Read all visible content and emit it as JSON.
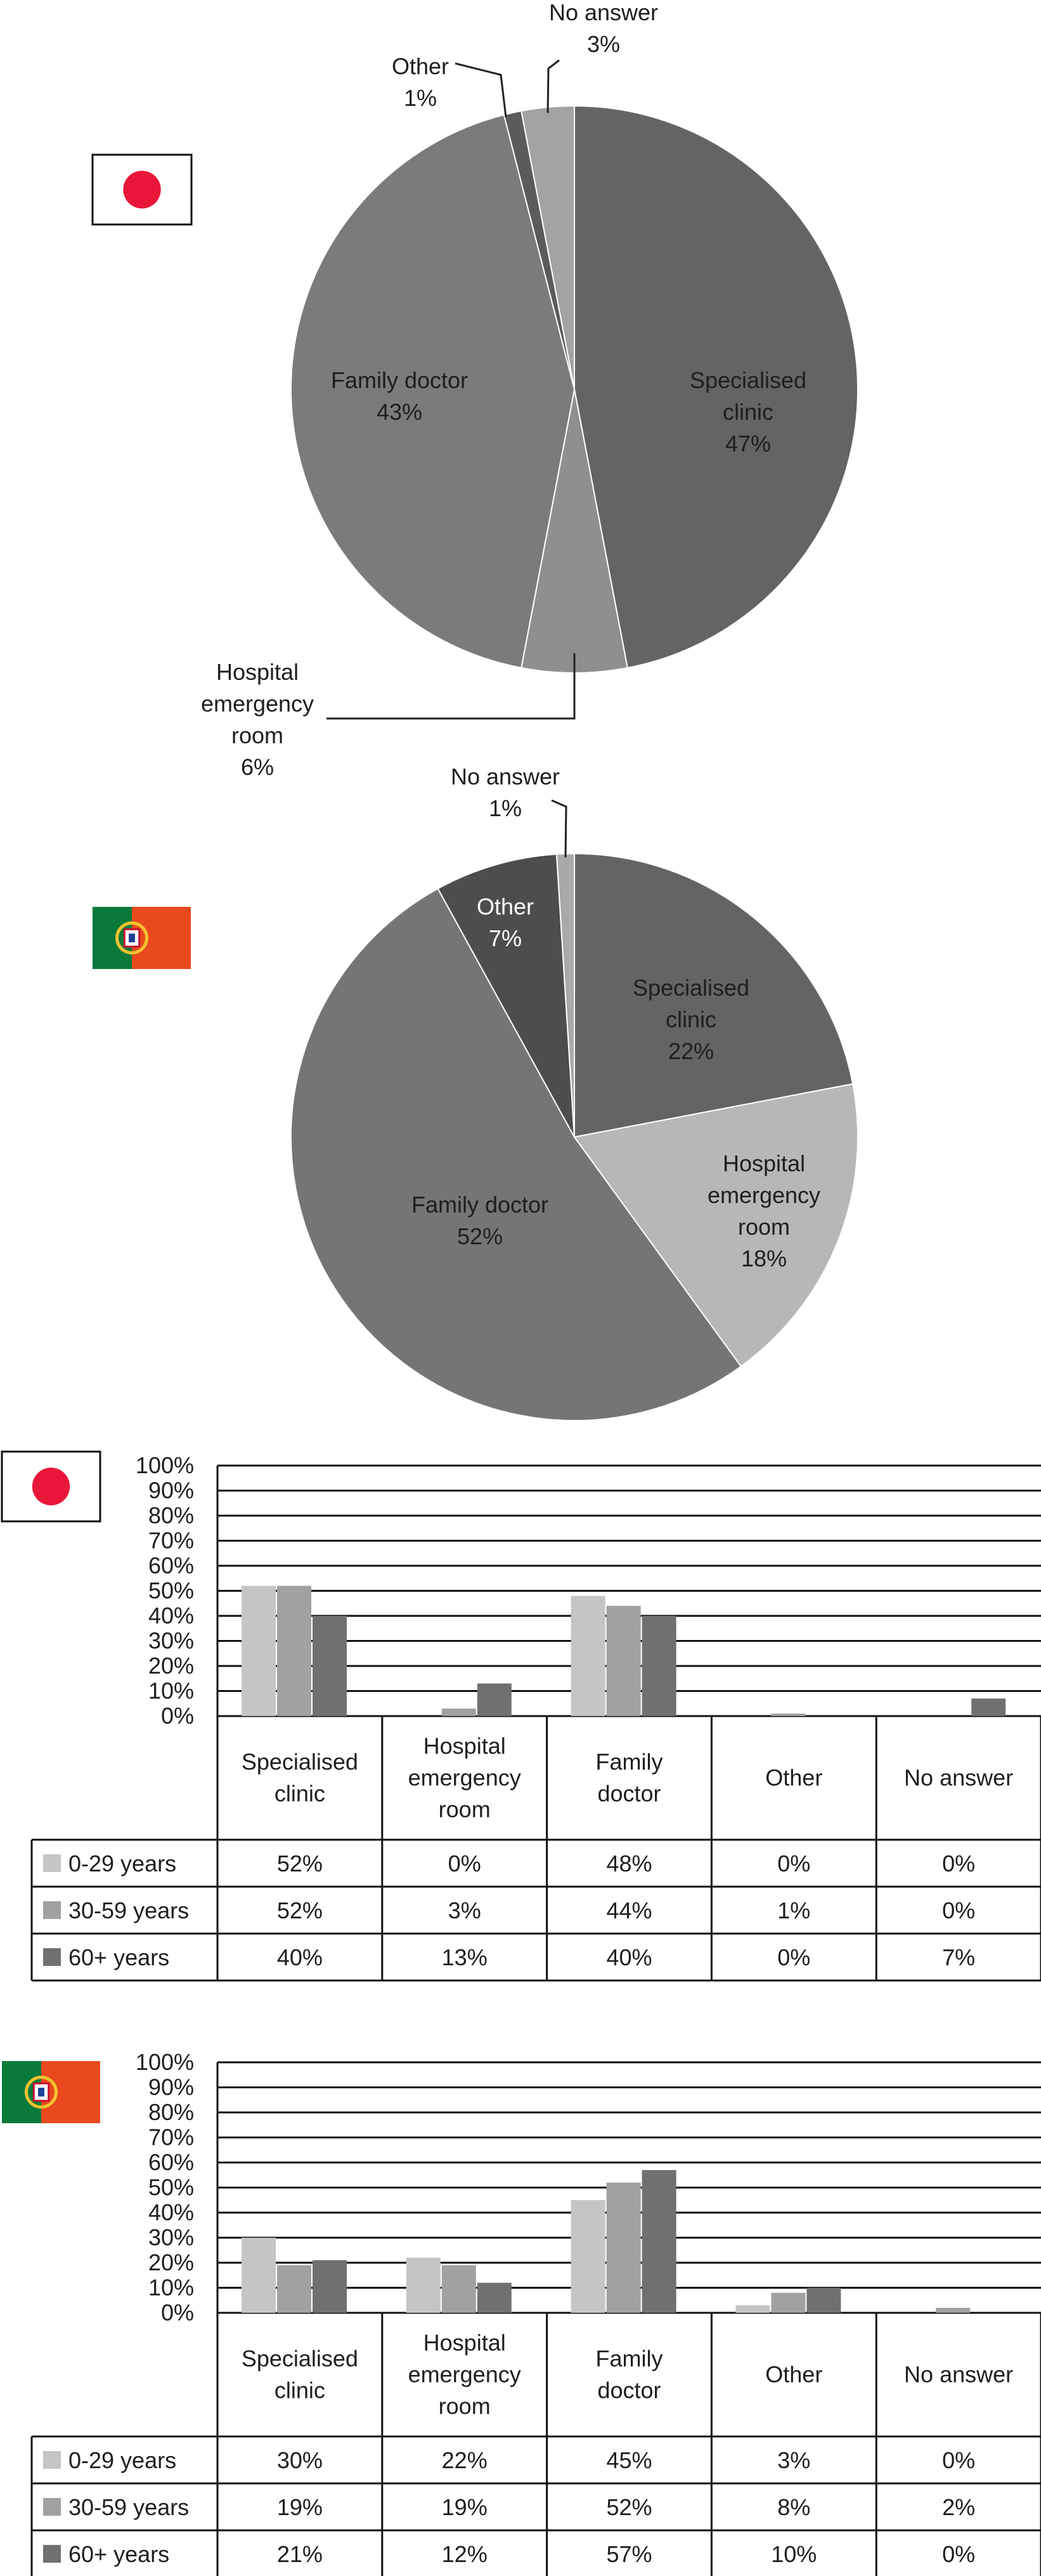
{
  "flags": {
    "japan": {
      "bg": "#ffffff",
      "disc": "#e8173a"
    },
    "portugal": {
      "green": "#0a7a3a",
      "red": "#e8491d",
      "emblem": "#f2c230"
    }
  },
  "pies": [
    {
      "flag": "japan",
      "slices": [
        {
          "label": [
            "Specialised",
            "clinic",
            "47%"
          ],
          "value": 47,
          "color": "#636565",
          "text_color": "dark"
        },
        {
          "label": [
            "Hospital",
            "emergency",
            "room",
            "6%"
          ],
          "value": 6,
          "color": "#8e8f90",
          "text_color": "dark",
          "callout": true
        },
        {
          "label": [
            "Family doctor",
            "43%"
          ],
          "value": 43,
          "color": "#7a7b7c",
          "text_color": "dark"
        },
        {
          "label": [
            "Other",
            "1%"
          ],
          "value": 1,
          "color": "#5a5b5c",
          "text_color": "dark",
          "callout": true
        },
        {
          "label": [
            "No answer",
            "3%"
          ],
          "value": 3,
          "color": "#a2a3a4",
          "text_color": "dark",
          "callout": true
        }
      ]
    },
    {
      "flag": "portugal",
      "slices": [
        {
          "label": [
            "Specialised",
            "clinic",
            "22%"
          ],
          "value": 22,
          "color": "#636565",
          "text_color": "dark"
        },
        {
          "label": [
            "Hospital",
            "emergency",
            "room",
            "18%"
          ],
          "value": 18,
          "color": "#b6b7b8",
          "text_color": "dark"
        },
        {
          "label": [
            "Family doctor",
            "52%"
          ],
          "value": 52,
          "color": "#747576",
          "text_color": "dark"
        },
        {
          "label": [
            "Other",
            "7%"
          ],
          "value": 7,
          "color": "#4b4d4f",
          "text_color": "light"
        },
        {
          "label": [
            "No answer",
            "1%"
          ],
          "value": 1,
          "color": "#a8a9aa",
          "text_color": "dark",
          "callout": true
        }
      ]
    }
  ],
  "chart_data": [
    {
      "type": "pie",
      "title": "",
      "categories": [
        "Specialised clinic",
        "Hospital emergency room",
        "Family doctor",
        "Other",
        "No answer"
      ],
      "values": [
        47,
        6,
        43,
        1,
        3
      ],
      "unit": "%"
    },
    {
      "type": "pie",
      "title": "",
      "categories": [
        "Specialised clinic",
        "Hospital emergency room",
        "Family doctor",
        "Other",
        "No answer"
      ],
      "values": [
        22,
        18,
        52,
        7,
        1
      ],
      "unit": "%"
    },
    {
      "type": "bar",
      "flag": "japan",
      "categories": [
        [
          "Specialised",
          "clinic"
        ],
        [
          "Hospital",
          "emergency",
          "room"
        ],
        [
          "Family",
          "doctor"
        ],
        [
          "Other"
        ],
        [
          "No answer"
        ]
      ],
      "series": [
        {
          "name": "0-29 years",
          "values": [
            52,
            0,
            48,
            0,
            0
          ],
          "display": [
            "52%",
            "0%",
            "48%",
            "0%",
            "0%"
          ],
          "color": "#c4c5c6"
        },
        {
          "name": "30-59 years",
          "values": [
            52,
            3,
            44,
            1,
            0
          ],
          "display": [
            "52%",
            "3%",
            "44%",
            "1%",
            "0%"
          ],
          "color": "#a0a1a2"
        },
        {
          "name": "60+ years",
          "values": [
            40,
            13,
            40,
            0,
            7
          ],
          "display": [
            "40%",
            "13%",
            "40%",
            "0%",
            "7%"
          ],
          "color": "#6f7071"
        }
      ],
      "yticks": [
        "0%",
        "10%",
        "20%",
        "30%",
        "40%",
        "50%",
        "60%",
        "70%",
        "80%",
        "90%",
        "100%"
      ],
      "ylim": [
        0,
        100
      ],
      "grid": true
    },
    {
      "type": "bar",
      "flag": "portugal",
      "categories": [
        [
          "Specialised",
          "clinic"
        ],
        [
          "Hospital",
          "emergency",
          "room"
        ],
        [
          "Family",
          "doctor"
        ],
        [
          "Other"
        ],
        [
          "No answer"
        ]
      ],
      "series": [
        {
          "name": "0-29 years",
          "values": [
            30,
            22,
            45,
            3,
            0
          ],
          "display": [
            "30%",
            "22%",
            "45%",
            "3%",
            "0%"
          ],
          "color": "#c4c5c6"
        },
        {
          "name": "30-59 years",
          "values": [
            19,
            19,
            52,
            8,
            2
          ],
          "display": [
            "19%",
            "19%",
            "52%",
            "8%",
            "2%"
          ],
          "color": "#a0a1a2"
        },
        {
          "name": "60+ years",
          "values": [
            21,
            12,
            57,
            10,
            0
          ],
          "display": [
            "21%",
            "12%",
            "57%",
            "10%",
            "0%"
          ],
          "color": "#6f7071"
        }
      ],
      "yticks": [
        "0%",
        "10%",
        "20%",
        "30%",
        "40%",
        "50%",
        "60%",
        "70%",
        "80%",
        "90%",
        "100%"
      ],
      "ylim": [
        0,
        100
      ],
      "grid": true
    }
  ]
}
